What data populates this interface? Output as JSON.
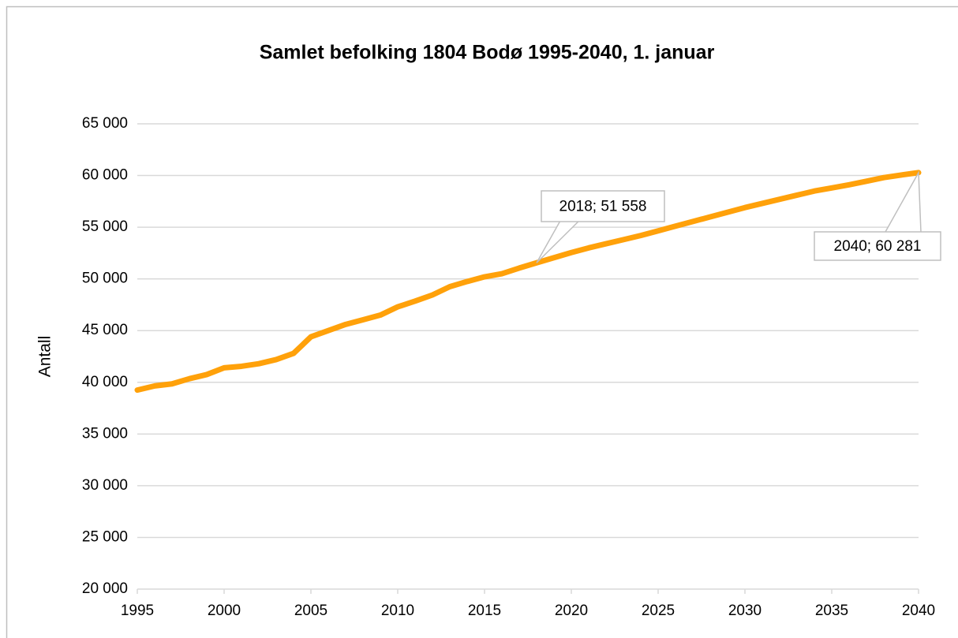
{
  "chart_data": {
    "type": "line",
    "title": "Samlet befolking 1804 Bodø 1995-2040, 1. januar",
    "y_label": "Antall",
    "color": "#ffa10a",
    "grid": true,
    "x": [
      1995,
      1996,
      1997,
      1998,
      1999,
      2000,
      2001,
      2002,
      2003,
      2004,
      2005,
      2006,
      2007,
      2008,
      2009,
      2010,
      2011,
      2012,
      2013,
      2014,
      2015,
      2016,
      2017,
      2018,
      2019,
      2020,
      2021,
      2022,
      2023,
      2024,
      2025,
      2026,
      2027,
      2028,
      2029,
      2030,
      2031,
      2032,
      2033,
      2034,
      2035,
      2036,
      2037,
      2038,
      2039,
      2040
    ],
    "values": [
      39250,
      39650,
      39850,
      40350,
      40750,
      41400,
      41550,
      41800,
      42200,
      42800,
      44400,
      45000,
      45600,
      46050,
      46500,
      47300,
      47850,
      48450,
      49250,
      49750,
      50200,
      50500,
      51050,
      51558,
      52050,
      52550,
      53000,
      53400,
      53800,
      54200,
      54650,
      55100,
      55550,
      56000,
      56450,
      56900,
      57300,
      57700,
      58100,
      58500,
      58800,
      59100,
      59450,
      59800,
      60050,
      60281
    ],
    "value_labels": [
      null,
      null,
      null,
      null,
      null,
      null,
      null,
      null,
      null,
      null,
      null,
      null,
      null,
      null,
      null,
      null,
      null,
      null,
      null,
      null,
      null,
      null,
      null,
      "2018; 51 558",
      null,
      null,
      null,
      null,
      null,
      null,
      null,
      null,
      null,
      null,
      null,
      null,
      null,
      null,
      null,
      null,
      null,
      null,
      null,
      null,
      null,
      "2040; 60 281"
    ],
    "xlim": [
      1995,
      2040
    ],
    "xticks": [
      1995,
      2000,
      2005,
      2010,
      2015,
      2020,
      2025,
      2030,
      2035,
      2040
    ],
    "ylim": [
      20000,
      65000
    ],
    "yticks": [
      {
        "value": 20000,
        "label": "20 000"
      },
      {
        "value": 25000,
        "label": "25 000"
      },
      {
        "value": 30000,
        "label": "30 000"
      },
      {
        "value": 35000,
        "label": "35 000"
      },
      {
        "value": 40000,
        "label": "40 000"
      },
      {
        "value": 45000,
        "label": "45 000"
      },
      {
        "value": 50000,
        "label": "50 000"
      },
      {
        "value": 55000,
        "label": "55 000"
      },
      {
        "value": 60000,
        "label": "60 000"
      },
      {
        "value": 65000,
        "label": "65 000"
      }
    ]
  }
}
